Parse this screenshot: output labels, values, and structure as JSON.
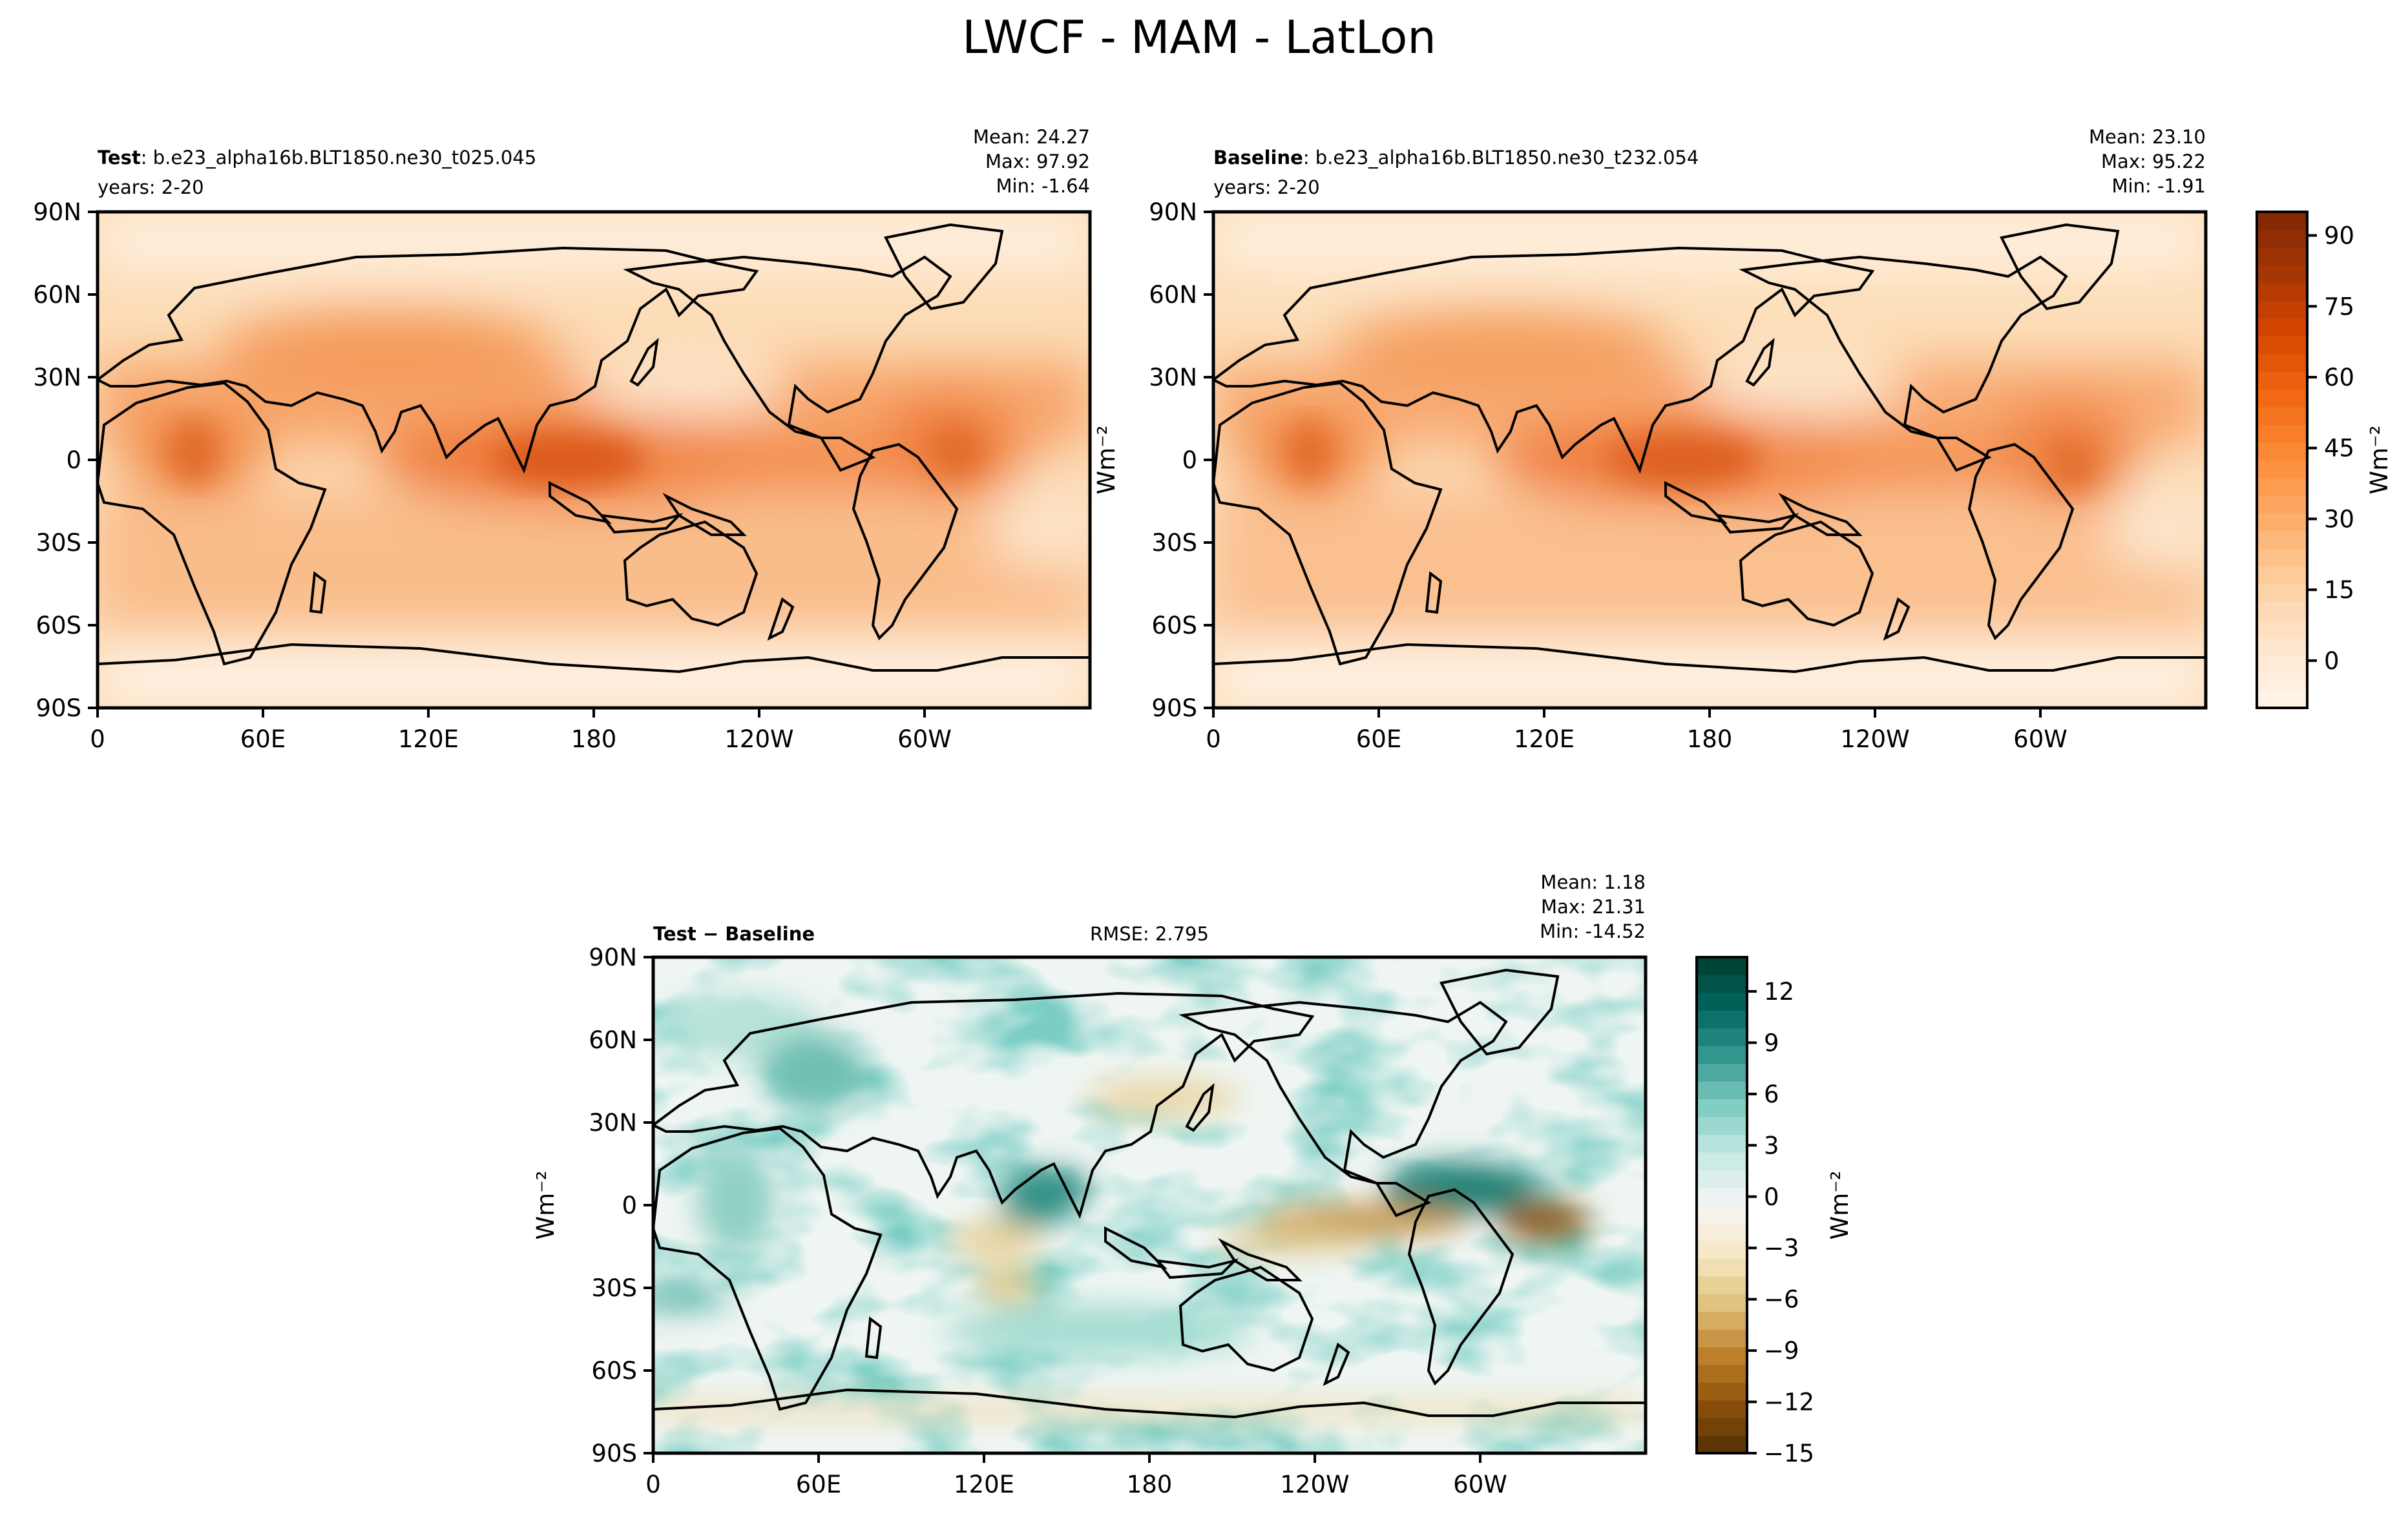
{
  "figure": {
    "title": "LWCF - MAM - LatLon"
  },
  "panels": [
    {
      "id": "test",
      "label_bold": "Test",
      "label_rest": ": b.e23_alpha16b.BLT1850.ne30_t025.045",
      "years": "years: 2-20",
      "stats": [
        "Mean: 24.27",
        "Max: 97.92",
        "Min: -1.64"
      ],
      "ylabel": "",
      "rmse": ""
    },
    {
      "id": "baseline",
      "label_bold": "Baseline",
      "label_rest": ": b.e23_alpha16b.BLT1850.ne30_t232.054",
      "years": "years: 2-20",
      "stats": [
        "Mean: 23.10",
        "Max: 95.22",
        "Min: -1.91"
      ],
      "ylabel": "Wm⁻²",
      "rmse": ""
    },
    {
      "id": "diff",
      "label_bold": "Test − Baseline",
      "label_rest": "",
      "years": "",
      "stats": [
        "Mean:  1.18",
        "Max: 21.31",
        "Min: -14.52"
      ],
      "ylabel": "Wm⁻²",
      "rmse": "RMSE: 2.795"
    }
  ],
  "axes": {
    "lat_ticks": [
      "90N",
      "60N",
      "30N",
      "0",
      "30S",
      "60S",
      "90S"
    ],
    "lon_ticks": [
      "0",
      "60E",
      "120E",
      "180",
      "120W",
      "60W"
    ]
  },
  "colorbars": [
    {
      "id": "mean-colorbar",
      "label": "Wm⁻²",
      "ticks": [
        "90",
        "75",
        "60",
        "45",
        "30",
        "15",
        "0"
      ],
      "tick_values": [
        90,
        75,
        60,
        45,
        30,
        15,
        0
      ],
      "range": [
        -10,
        95
      ],
      "colormap": "Oranges",
      "colors": [
        "#fff5eb",
        "#fee6ce",
        "#fdd0a2",
        "#fdae6b",
        "#fd8d3c",
        "#f16913",
        "#d94801",
        "#a63603",
        "#7f2704"
      ]
    },
    {
      "id": "diff-colorbar",
      "label": "Wm⁻²",
      "ticks": [
        "12",
        "9",
        "6",
        "3",
        "0",
        "−3",
        "−6",
        "−9",
        "−12",
        "−15"
      ],
      "tick_values": [
        12,
        9,
        6,
        3,
        0,
        -3,
        -6,
        -9,
        -12,
        -15
      ],
      "range": [
        -15,
        14
      ],
      "colormap": "BrBG",
      "colors": [
        "#543005",
        "#8c510a",
        "#bf812d",
        "#dfc27d",
        "#f6e8c3",
        "#f5f5f5",
        "#c7eae5",
        "#80cdc1",
        "#35978f",
        "#01665e",
        "#003c30"
      ]
    }
  ],
  "colors": {
    "ocean_test": "#fbd3a8",
    "ocean_baseline": "#fbd5ab",
    "tropical_band": "#f08a4b",
    "warm_pool": "#e06524",
    "polar": "#fff0e0",
    "diff_base": "#eef5f2",
    "diff_green": "#9ed7cc",
    "diff_brown": "#b8893e"
  }
}
